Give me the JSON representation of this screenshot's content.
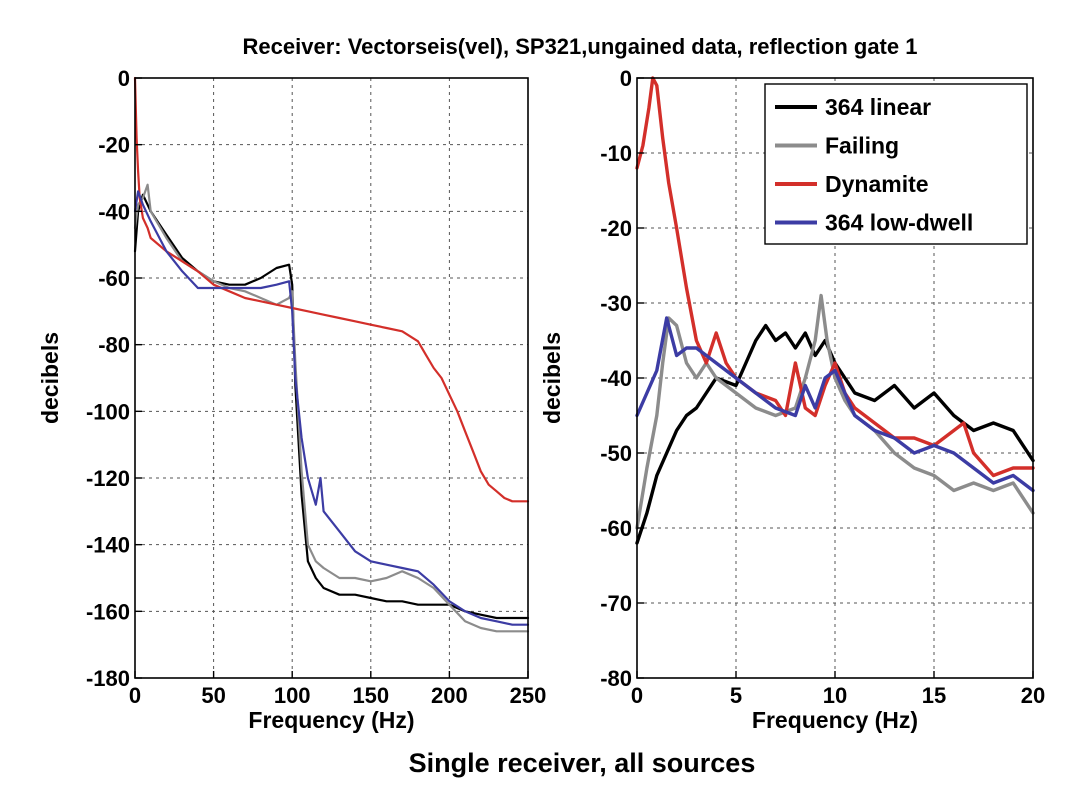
{
  "figure": {
    "title": "Receiver: Vectorseis(vel), SP321,ungained data, reflection gate 1",
    "caption": "Single receiver, all sources"
  },
  "chart_data": [
    {
      "type": "line",
      "xlabel": "Frequency (Hz)",
      "ylabel": "decibels",
      "xlim": [
        0,
        250
      ],
      "ylim": [
        -180,
        0
      ],
      "xticks": [
        0,
        50,
        100,
        150,
        200,
        250
      ],
      "yticks": [
        -180,
        -160,
        -140,
        -120,
        -100,
        -80,
        -60,
        -40,
        -20,
        0
      ],
      "grid": true,
      "series": [
        {
          "name": "364 linear",
          "color": "#000000",
          "x": [
            0,
            2,
            5,
            10,
            20,
            30,
            40,
            50,
            60,
            70,
            80,
            90,
            98,
            100,
            102,
            106,
            110,
            115,
            120,
            130,
            140,
            150,
            160,
            170,
            180,
            190,
            200,
            210,
            220,
            230,
            240,
            250
          ],
          "y": [
            -52,
            -40,
            -35,
            -40,
            -47,
            -54,
            -58,
            -61,
            -62,
            -62,
            -60,
            -57,
            -56,
            -62,
            -92,
            -125,
            -145,
            -150,
            -153,
            -155,
            -155,
            -156,
            -157,
            -157,
            -158,
            -158,
            -158,
            -160,
            -161,
            -162,
            -162,
            -162
          ]
        },
        {
          "name": "Failing",
          "color": "#8c8c8c",
          "x": [
            0,
            2,
            5,
            8,
            10,
            20,
            30,
            40,
            50,
            60,
            70,
            80,
            90,
            98,
            100,
            102,
            106,
            110,
            115,
            120,
            130,
            140,
            150,
            160,
            170,
            180,
            190,
            200,
            210,
            220,
            230,
            240,
            250
          ],
          "y": [
            -45,
            -38,
            -36,
            -32,
            -40,
            -48,
            -55,
            -58,
            -61,
            -63,
            -64,
            -66,
            -68,
            -66,
            -64,
            -85,
            -118,
            -140,
            -145,
            -147,
            -150,
            -150,
            -151,
            -150,
            -148,
            -150,
            -153,
            -158,
            -163,
            -165,
            -166,
            -166,
            -166
          ]
        },
        {
          "name": "Dynamite",
          "color": "#d32f2a",
          "x": [
            0,
            1,
            2,
            3,
            5,
            8,
            10,
            20,
            30,
            40,
            50,
            60,
            70,
            80,
            90,
            100,
            110,
            120,
            130,
            140,
            150,
            160,
            170,
            180,
            185,
            190,
            195,
            200,
            205,
            210,
            215,
            220,
            225,
            230,
            235,
            240,
            245,
            250
          ],
          "y": [
            0,
            -18,
            -28,
            -36,
            -42,
            -45,
            -48,
            -52,
            -55,
            -58,
            -62,
            -64,
            -66,
            -67,
            -68,
            -69,
            -70,
            -71,
            -72,
            -73,
            -74,
            -75,
            -76,
            -79,
            -83,
            -87,
            -90,
            -95,
            -100,
            -106,
            -112,
            -118,
            -122,
            -124,
            -126,
            -127,
            -127,
            -127
          ]
        },
        {
          "name": "364 low-dwell",
          "color": "#3c3ca4",
          "x": [
            0,
            2,
            5,
            10,
            20,
            30,
            40,
            50,
            60,
            70,
            80,
            90,
            98,
            100,
            102,
            106,
            110,
            115,
            118,
            120,
            125,
            130,
            140,
            150,
            160,
            170,
            180,
            190,
            200,
            210,
            220,
            230,
            240,
            250
          ],
          "y": [
            -40,
            -34,
            -38,
            -43,
            -52,
            -58,
            -63,
            -63,
            -63,
            -63,
            -63,
            -62,
            -61,
            -70,
            -90,
            -108,
            -120,
            -128,
            -120,
            -130,
            -133,
            -136,
            -142,
            -145,
            -146,
            -147,
            -148,
            -152,
            -157,
            -160,
            -162,
            -163,
            -164,
            -164
          ]
        }
      ]
    },
    {
      "type": "line",
      "xlabel": "Frequency (Hz)",
      "ylabel": "decibels",
      "xlim": [
        0,
        20
      ],
      "ylim": [
        -80,
        0
      ],
      "xticks": [
        0,
        5,
        10,
        15,
        20
      ],
      "yticks": [
        -80,
        -70,
        -60,
        -50,
        -40,
        -30,
        -20,
        -10,
        0
      ],
      "grid": true,
      "legend": "top-right",
      "series": [
        {
          "name": "364 linear",
          "color": "#000000",
          "x": [
            0,
            0.5,
            1,
            1.5,
            2,
            2.5,
            3,
            3.5,
            4,
            5,
            5.5,
            6,
            6.5,
            7,
            7.5,
            8,
            8.5,
            9,
            9.5,
            10,
            10.5,
            11,
            12,
            13,
            14,
            15,
            16,
            17,
            18,
            19,
            20
          ],
          "y": [
            -62,
            -58,
            -53,
            -50,
            -47,
            -45,
            -44,
            -42,
            -40,
            -41,
            -38,
            -35,
            -33,
            -35,
            -34,
            -36,
            -34,
            -37,
            -35,
            -38,
            -40,
            -42,
            -43,
            -41,
            -44,
            -42,
            -45,
            -47,
            -46,
            -47,
            -51
          ]
        },
        {
          "name": "Failing",
          "color": "#8c8c8c",
          "x": [
            0,
            0.5,
            1,
            1.3,
            1.6,
            2,
            2.5,
            3,
            3.5,
            4,
            5,
            6,
            7,
            8,
            8.5,
            9,
            9.3,
            9.6,
            10,
            10.5,
            11,
            12,
            13,
            14,
            15,
            16,
            17,
            18,
            19,
            20
          ],
          "y": [
            -60,
            -52,
            -45,
            -38,
            -32,
            -33,
            -38,
            -40,
            -38,
            -40,
            -42,
            -44,
            -45,
            -44,
            -40,
            -35,
            -29,
            -35,
            -40,
            -43,
            -45,
            -47,
            -50,
            -52,
            -53,
            -55,
            -54,
            -55,
            -54,
            -58
          ]
        },
        {
          "name": "Dynamite",
          "color": "#d32f2a",
          "x": [
            0,
            0.3,
            0.6,
            0.8,
            1,
            1.3,
            1.6,
            2,
            2.5,
            3,
            3.5,
            4,
            4.5,
            5,
            6,
            7,
            7.5,
            8,
            8.5,
            9,
            9.5,
            10,
            10.5,
            11,
            12,
            13,
            14,
            15,
            16,
            16.5,
            17,
            18,
            19,
            20
          ],
          "y": [
            -12,
            -9,
            -4,
            0,
            -1,
            -8,
            -14,
            -20,
            -28,
            -35,
            -38,
            -34,
            -38,
            -40,
            -42,
            -43,
            -45,
            -38,
            -44,
            -45,
            -41,
            -38,
            -42,
            -44,
            -46,
            -48,
            -48,
            -49,
            -47,
            -46,
            -50,
            -53,
            -52,
            -52
          ]
        },
        {
          "name": "364 low-dwell",
          "color": "#3c3ca4",
          "x": [
            0,
            0.5,
            1,
            1.5,
            2,
            2.5,
            3,
            3.5,
            4,
            5,
            6,
            7,
            8,
            8.5,
            9,
            9.5,
            10,
            10.5,
            11,
            12,
            13,
            14,
            15,
            16,
            17,
            18,
            19,
            20
          ],
          "y": [
            -45,
            -42,
            -39,
            -32,
            -37,
            -36,
            -36,
            -37,
            -38,
            -40,
            -42,
            -44,
            -45,
            -41,
            -44,
            -40,
            -39,
            -42,
            -45,
            -47,
            -48,
            -50,
            -49,
            -50,
            -52,
            -54,
            -53,
            -55
          ]
        }
      ]
    }
  ]
}
